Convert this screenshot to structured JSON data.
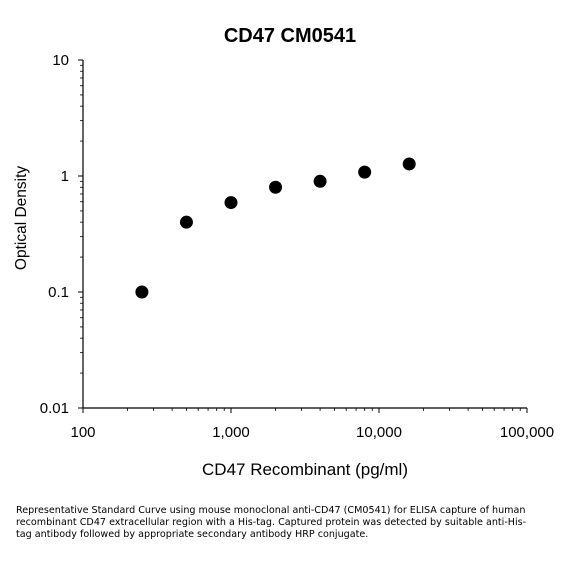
{
  "chart_data": {
    "type": "scatter",
    "title": "CD47 CM0541",
    "xlabel": "CD47 Recombinant (pg/ml)",
    "ylabel": "Optical Density",
    "xscale": "log",
    "yscale": "log",
    "xlim": [
      100,
      100000
    ],
    "ylim": [
      0.01,
      10
    ],
    "xticks": [
      "100",
      "1,000",
      "10,000",
      "100,000"
    ],
    "yticks": [
      "0.01",
      "0.1",
      "1",
      "10"
    ],
    "grid": false,
    "legend": "none",
    "marker_color": "#000000",
    "points": [
      {
        "x": 250,
        "y": 0.1
      },
      {
        "x": 500,
        "y": 0.4
      },
      {
        "x": 1000,
        "y": 0.59
      },
      {
        "x": 2000,
        "y": 0.8
      },
      {
        "x": 4000,
        "y": 0.9
      },
      {
        "x": 8000,
        "y": 1.08
      },
      {
        "x": 16000,
        "y": 1.27
      }
    ]
  },
  "caption": "Representative Standard Curve using mouse monoclonal anti-CD47 (CM0541) for ELISA capture of human recombinant CD47 extracellular region with a His-tag. Captured protein was detected by suitable anti-His-tag antibody followed by appropriate secondary antibody HRP conjugate."
}
